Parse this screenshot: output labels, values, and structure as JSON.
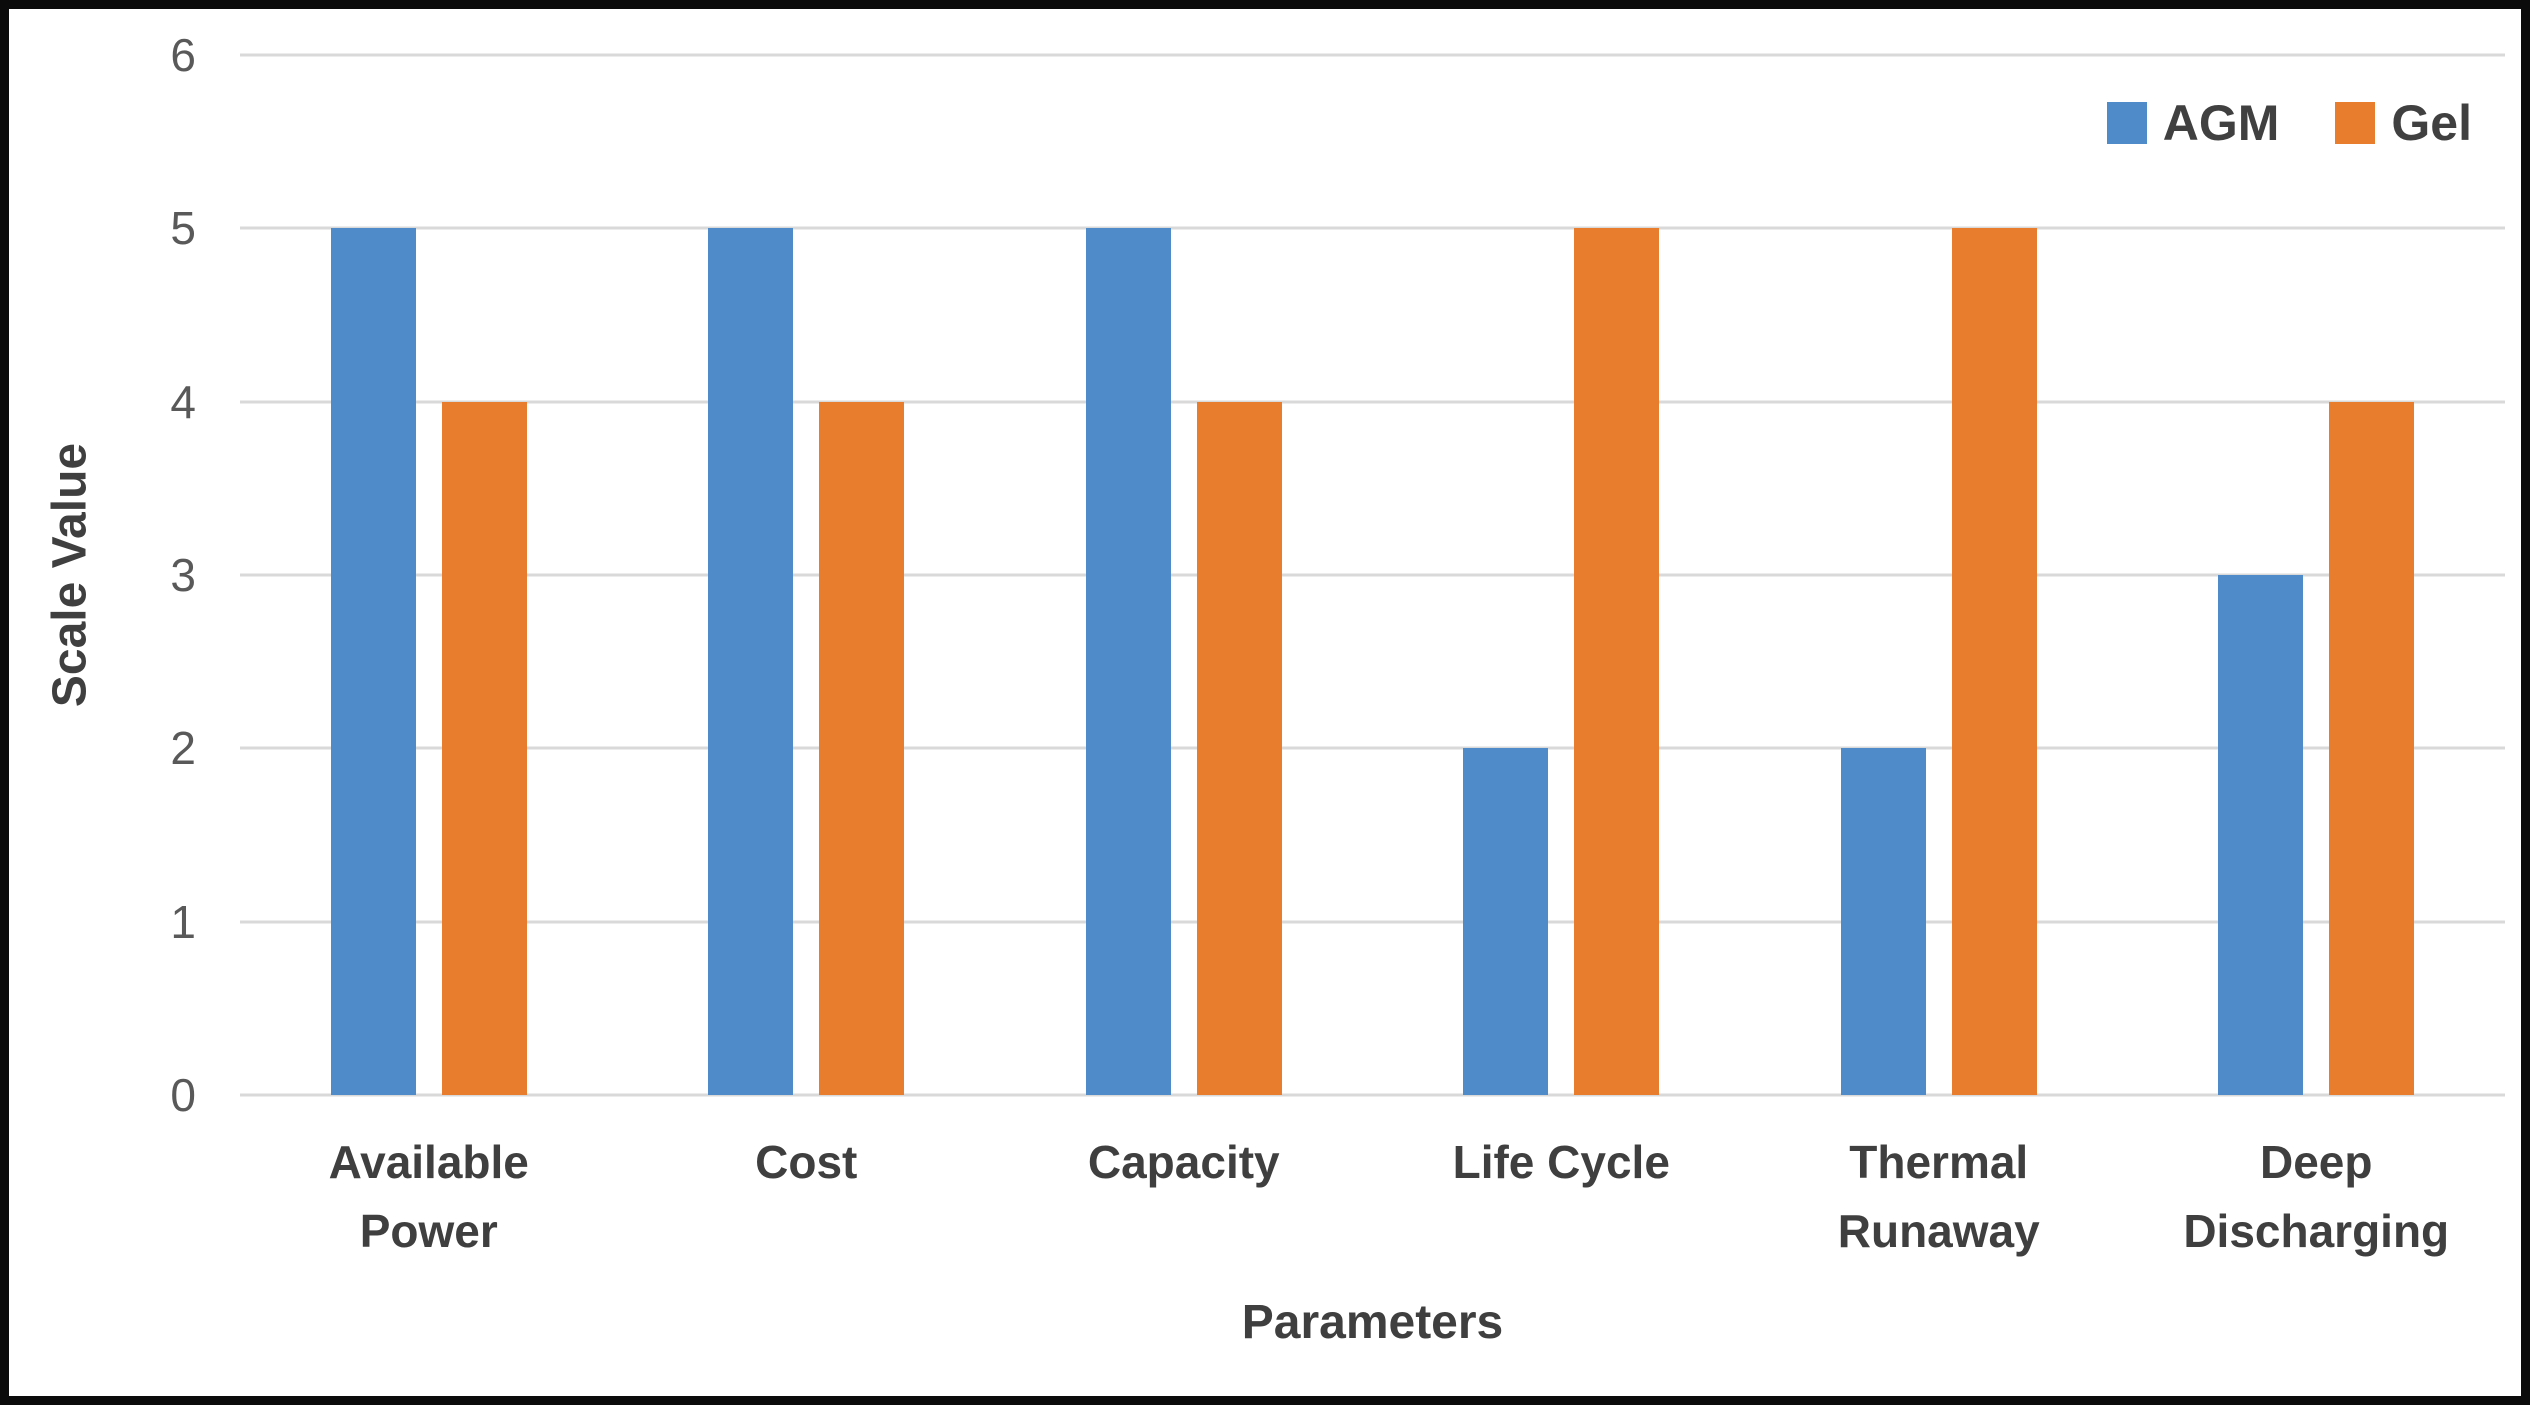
{
  "chart_data": {
    "type": "bar",
    "title": "",
    "categories": [
      "Available Power",
      "Cost",
      "Capacity",
      "Life Cycle",
      "Thermal Runaway",
      "Deep Discharging"
    ],
    "series": [
      {
        "name": "AGM",
        "color": "#4e8bc8",
        "values": [
          5,
          5,
          5,
          2,
          2,
          3
        ]
      },
      {
        "name": "Gel",
        "color": "#e87d2e",
        "values": [
          4,
          4,
          4,
          5,
          5,
          4
        ]
      }
    ],
    "xlabel": "Parameters",
    "ylabel": "Scale Value",
    "ylim": [
      0,
      6
    ],
    "yticks": [
      0,
      1,
      2,
      3,
      4,
      5,
      6
    ],
    "grid": "horizontal",
    "legend_position": "top-right",
    "gridline_color": "#d9d9d9",
    "text_color": "#3f3f3f",
    "tick_color": "#595959"
  }
}
